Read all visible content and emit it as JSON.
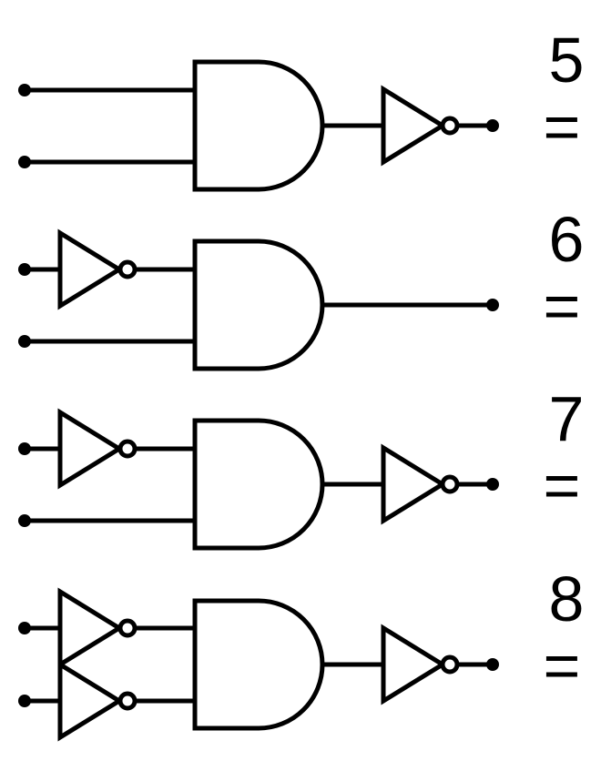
{
  "diagram": {
    "stroke_color": "#000000",
    "background": "#ffffff",
    "rows": [
      {
        "number": "5",
        "relation": "=",
        "components": [
          "wire",
          "wire",
          "and-gate",
          "inverter"
        ]
      },
      {
        "number": "6",
        "relation": "=",
        "components": [
          "inverter",
          "wire",
          "and-gate"
        ]
      },
      {
        "number": "7",
        "relation": "=",
        "components": [
          "inverter",
          "wire",
          "and-gate",
          "inverter"
        ]
      },
      {
        "number": "8",
        "relation": "=",
        "components": [
          "inverter",
          "inverter",
          "and-gate",
          "inverter"
        ]
      }
    ]
  }
}
